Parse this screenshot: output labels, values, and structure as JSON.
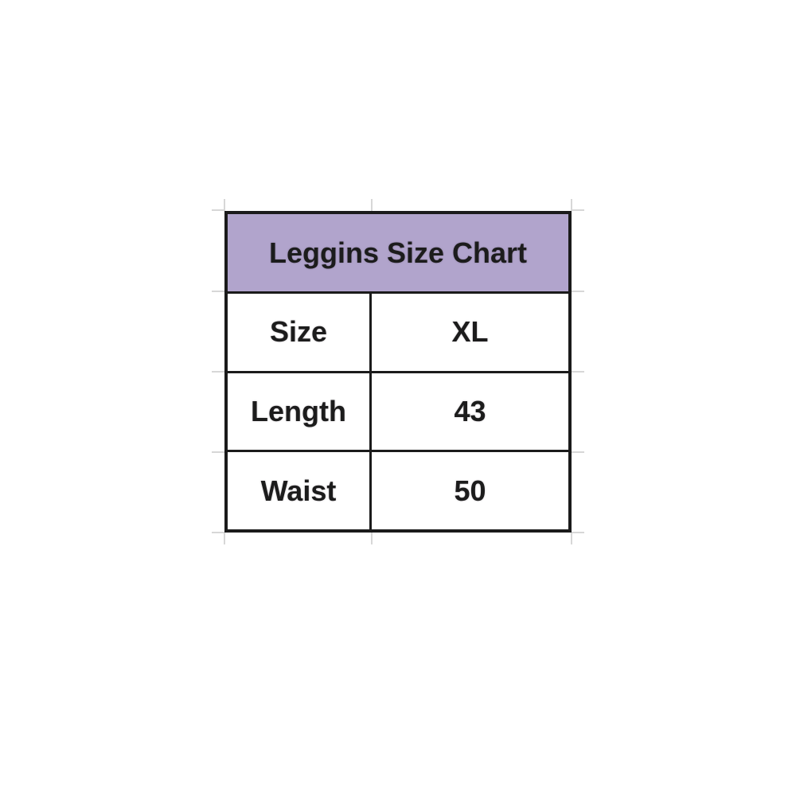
{
  "chart_data": {
    "type": "table",
    "title": "Leggins Size Chart",
    "rows": [
      {
        "label": "Size",
        "value": "XL"
      },
      {
        "label": "Length",
        "value": "43"
      },
      {
        "label": "Waist",
        "value": "50"
      }
    ],
    "layout": {
      "header_span": "full-width",
      "grid": "faint spreadsheet gridline ticks outside table edges"
    }
  },
  "colors": {
    "header_bg": "#b1a4cc",
    "border": "#1b1b1b",
    "text": "#1c1c1c",
    "gridline": "#d7d7d7",
    "background": "#ffffff"
  }
}
